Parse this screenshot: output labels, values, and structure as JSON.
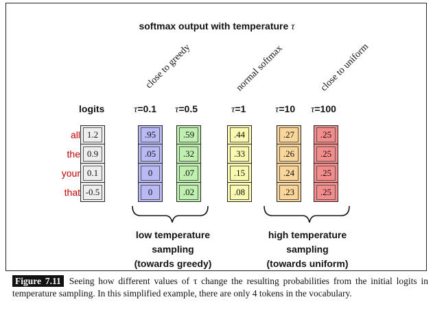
{
  "figure": {
    "title_prefix": "softmax output with temperature ",
    "title_symbol": "τ",
    "annotations": {
      "greedy": "close to greedy",
      "normal": "normal softmax",
      "uniform": "close to uniform"
    },
    "headers": {
      "logits": "logits",
      "t01": "=0.1",
      "t05": "=0.5",
      "t1": "=1",
      "t10": "=10",
      "t100": "=100"
    },
    "tokens": [
      "all",
      "the",
      "your",
      "that"
    ],
    "columns": {
      "logits": [
        "1.2",
        "0.9",
        "0.1",
        "-0.5"
      ],
      "t01": [
        ".95",
        ".05",
        "0",
        "0"
      ],
      "t05": [
        ".59",
        ".32",
        ".07",
        ".02"
      ],
      "t1": [
        ".44",
        ".33",
        ".15",
        ".08"
      ],
      "t10": [
        ".27",
        ".26",
        ".24",
        ".23"
      ],
      "t100": [
        ".25",
        ".25",
        ".25",
        ".25"
      ]
    },
    "colors": {
      "logits": "#eeeeee",
      "t01": "#b9b9f5",
      "t05": "#bff0b0",
      "t1": "#fafab0",
      "t10": "#fad69b",
      "t100": "#f58c8c",
      "token_text": "#c00000"
    },
    "groups": {
      "low": [
        "low temperature",
        "sampling",
        "(towards greedy)"
      ],
      "high": [
        "high temperature",
        "sampling",
        "(towards uniform)"
      ]
    }
  },
  "caption": {
    "label": "Figure 7.11",
    "text": "Seeing how different values of τ change the resulting probabilities from the initial logits in temperature sampling. In this simplified example, there are only 4 tokens in the vocabulary."
  }
}
